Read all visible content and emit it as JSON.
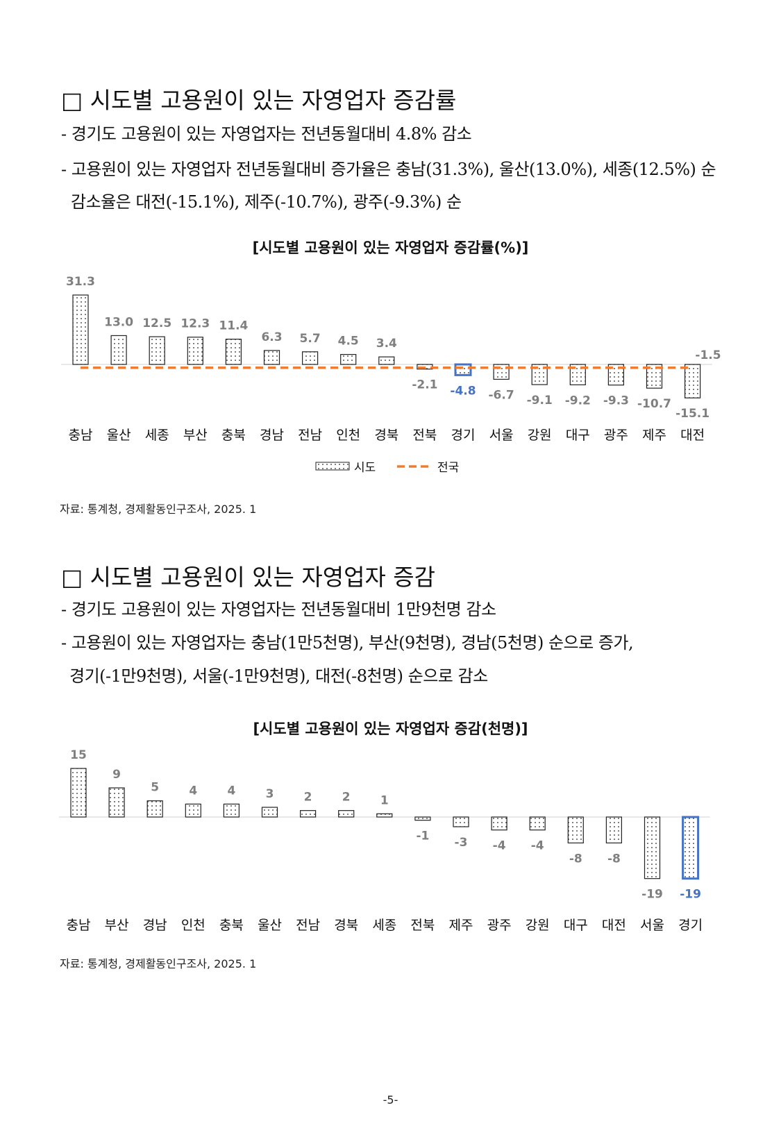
{
  "section1": {
    "title": "□ 시도별 고용원이 있는 자영업자 증감률",
    "bullets": [
      "- 경기도 고용원이 있는 자영업자는 전년동월대비 4.8% 감소",
      "- 고용원이 있는 자영업자 전년동월대비 증가율은 충남(31.3%), 울산(13.0%),  세종(12.5%)  순",
      "감소율은 대전(-15.1%), 제주(-10.7%), 광주(-9.3%) 순"
    ],
    "chart_title": "[시도별 고용원이 있는 자영업자 증감률(%)]",
    "source": "자료: 통계청, 경제활동인구조사, 2025. 1"
  },
  "section2": {
    "title": "□ 시도별 고용원이 있는 자영업자 증감",
    "bullets": [
      "- 경기도 고용원이 있는 자영업자는 전년동월대비 1만9천명 감소",
      "- 고용원이 있는 자영업자는 충남(1만5천명), 부산(9천명), 경남(5천명) 순으로 증가,",
      "경기(-1만9천명), 서울(-1만9천명), 대전(-8천명) 순으로 감소"
    ],
    "chart_title": "[시도별 고용원이 있는 자영업자 증감(천명)]",
    "source": "자료: 통계청, 경제활동인구조사, 2025. 1"
  },
  "page_number": "-5-",
  "colors": {
    "label_gray": "#7f7f7f",
    "highlight_blue": "#4472c4",
    "national_orange": "#ed7d31"
  },
  "chart_data": [
    {
      "type": "bar",
      "title": "[시도별 고용원이 있는 자영업자 증감률(%)]",
      "categories": [
        "충남",
        "울산",
        "세종",
        "부산",
        "충북",
        "경남",
        "전남",
        "인천",
        "경북",
        "전북",
        "경기",
        "서울",
        "강원",
        "대구",
        "광주",
        "제주",
        "대전"
      ],
      "series": [
        {
          "name": "시도",
          "values": [
            31.3,
            13.0,
            12.5,
            12.3,
            11.4,
            6.3,
            5.7,
            4.5,
            3.4,
            -2.1,
            -4.8,
            -6.7,
            -9.1,
            -9.2,
            -9.3,
            -10.7,
            -15.1
          ]
        },
        {
          "name": "전국",
          "type": "line",
          "value": -1.5
        }
      ],
      "value_labels": [
        "31.3",
        "13.0",
        "12.5",
        "12.3",
        "11.4",
        "6.3",
        "5.7",
        "4.5",
        "3.4",
        "-2.1",
        "-4.8",
        "-6.7",
        "-9.1",
        "-9.2",
        "-9.3",
        "-10.7",
        "-15.1"
      ],
      "national_label": "-1.5",
      "highlight": "경기",
      "legend": {
        "position": "bottom",
        "items": [
          "시도",
          "전국"
        ]
      }
    },
    {
      "type": "bar",
      "title": "[시도별 고용원이 있는 자영업자 증감(천명)]",
      "categories": [
        "충남",
        "부산",
        "경남",
        "인천",
        "충북",
        "울산",
        "전남",
        "경북",
        "세종",
        "전북",
        "제주",
        "광주",
        "강원",
        "대구",
        "대전",
        "서울",
        "경기"
      ],
      "series": [
        {
          "values": [
            15,
            9,
            5,
            4,
            4,
            3,
            2,
            2,
            1,
            -1,
            -3,
            -4,
            -4,
            -8,
            -8,
            -19,
            -19
          ]
        }
      ],
      "value_labels": [
        "15",
        "9",
        "5",
        "4",
        "4",
        "3",
        "2",
        "2",
        "1",
        "-1",
        "-3",
        "-4",
        "-4",
        "-8",
        "-8",
        "-19",
        "-19"
      ],
      "highlight": "경기"
    }
  ]
}
